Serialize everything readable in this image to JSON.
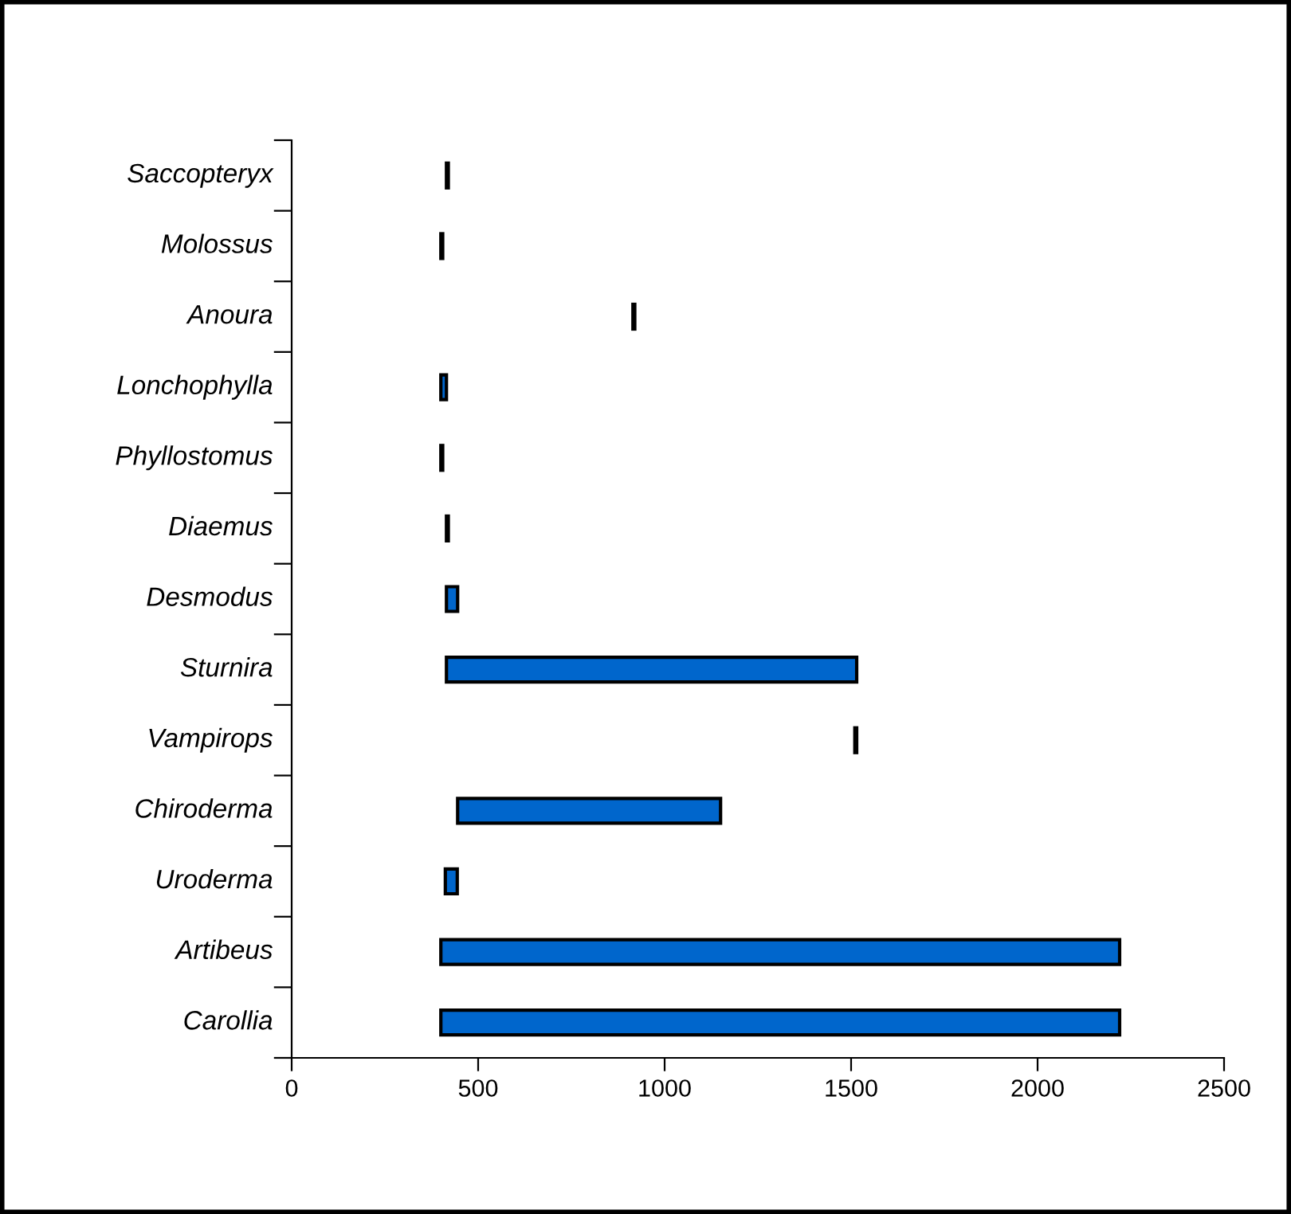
{
  "chart_data": {
    "type": "bar",
    "orientation": "horizontal",
    "categories": [
      "Saccopteryx",
      "Molossus",
      "Anoura",
      "Lonchophylla",
      "Phyllostomus",
      "Diaemus",
      "Desmodus",
      "Sturnira",
      "Vampirops",
      "Chiroderma",
      "Uroderma",
      "Artibeus",
      "Carollia"
    ],
    "base": [
      415,
      400,
      915,
      400,
      400,
      415,
      415,
      415,
      1510,
      445,
      412,
      400,
      400
    ],
    "values": [
      5,
      5,
      5,
      15,
      5,
      5,
      30,
      1100,
      5,
      705,
      32,
      1820,
      1820
    ],
    "color": "#0066cc",
    "xlim": [
      0,
      2500
    ],
    "xticks": [
      0,
      500,
      1000,
      1500,
      2000,
      2500
    ],
    "grid": false
  }
}
